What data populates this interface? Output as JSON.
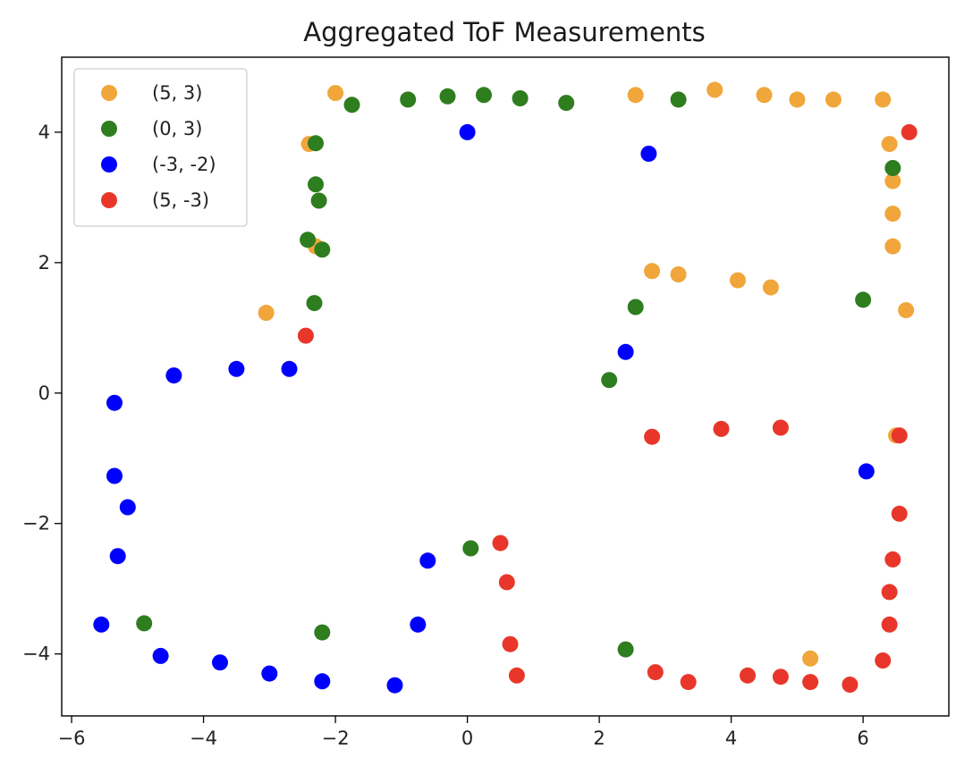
{
  "chart_data": {
    "type": "scatter",
    "title": "Aggregated ToF Measurements",
    "xlabel": "",
    "ylabel": "",
    "xlim": [
      -6.15,
      7.3
    ],
    "ylim": [
      -4.95,
      5.15
    ],
    "xticks": [
      -6,
      -4,
      -2,
      0,
      2,
      4,
      6
    ],
    "yticks": [
      -4,
      -2,
      0,
      2,
      4
    ],
    "x_tick_labels": [
      "−6",
      "−4",
      "−2",
      "0",
      "2",
      "4",
      "6"
    ],
    "y_tick_labels": [
      "−4",
      "−2",
      "0",
      "2",
      "4"
    ],
    "grid": false,
    "legend_position": "top-left",
    "series": [
      {
        "name": "(5, 3)",
        "color": "#f0a63a",
        "points": [
          [
            -2.0,
            4.6
          ],
          [
            2.55,
            4.57
          ],
          [
            3.75,
            4.65
          ],
          [
            4.5,
            4.57
          ],
          [
            5.0,
            4.5
          ],
          [
            5.55,
            4.5
          ],
          [
            6.3,
            4.5
          ],
          [
            -2.4,
            3.82
          ],
          [
            6.4,
            3.82
          ],
          [
            6.45,
            3.25
          ],
          [
            6.45,
            2.75
          ],
          [
            6.45,
            2.25
          ],
          [
            -2.3,
            2.25
          ],
          [
            2.8,
            1.87
          ],
          [
            3.2,
            1.82
          ],
          [
            4.1,
            1.73
          ],
          [
            4.6,
            1.62
          ],
          [
            -3.05,
            1.23
          ],
          [
            6.65,
            1.27
          ],
          [
            6.5,
            -0.65
          ],
          [
            5.2,
            -4.07
          ]
        ]
      },
      {
        "name": "(0, 3)",
        "color": "#2e7d1f",
        "points": [
          [
            -1.75,
            4.42
          ],
          [
            -0.9,
            4.5
          ],
          [
            -0.3,
            4.55
          ],
          [
            0.25,
            4.57
          ],
          [
            0.8,
            4.52
          ],
          [
            1.5,
            4.45
          ],
          [
            3.2,
            4.5
          ],
          [
            -2.3,
            3.83
          ],
          [
            6.45,
            3.45
          ],
          [
            -2.3,
            3.2
          ],
          [
            -2.25,
            2.95
          ],
          [
            -2.42,
            2.35
          ],
          [
            -2.2,
            2.2
          ],
          [
            -2.32,
            1.38
          ],
          [
            6.0,
            1.43
          ],
          [
            2.55,
            1.32
          ],
          [
            2.15,
            0.2
          ],
          [
            0.05,
            -2.38
          ],
          [
            -4.9,
            -3.53
          ],
          [
            -2.2,
            -3.67
          ],
          [
            2.4,
            -3.93
          ]
        ]
      },
      {
        "name": "(-3, -2)",
        "color": "#0000ff",
        "points": [
          [
            0.0,
            4.0
          ],
          [
            2.75,
            3.67
          ],
          [
            2.4,
            0.63
          ],
          [
            -2.7,
            0.37
          ],
          [
            -3.5,
            0.37
          ],
          [
            -4.45,
            0.27
          ],
          [
            -5.35,
            -0.15
          ],
          [
            -5.35,
            -1.27
          ],
          [
            -5.15,
            -1.75
          ],
          [
            -5.3,
            -2.5
          ],
          [
            -5.55,
            -3.55
          ],
          [
            -4.65,
            -4.03
          ],
          [
            -3.75,
            -4.13
          ],
          [
            -3.0,
            -4.3
          ],
          [
            -2.2,
            -4.42
          ],
          [
            -1.1,
            -4.48
          ],
          [
            -0.75,
            -3.55
          ],
          [
            -0.6,
            -2.57
          ],
          [
            6.05,
            -1.2
          ]
        ]
      },
      {
        "name": "(5, -3)",
        "color": "#e8372a",
        "points": [
          [
            6.7,
            4.0
          ],
          [
            -2.45,
            0.88
          ],
          [
            2.8,
            -0.67
          ],
          [
            3.85,
            -0.55
          ],
          [
            4.75,
            -0.53
          ],
          [
            6.55,
            -0.65
          ],
          [
            6.55,
            -1.85
          ],
          [
            0.5,
            -2.3
          ],
          [
            6.45,
            -2.55
          ],
          [
            0.6,
            -2.9
          ],
          [
            6.4,
            -3.05
          ],
          [
            6.4,
            -3.55
          ],
          [
            0.65,
            -3.85
          ],
          [
            0.75,
            -4.33
          ],
          [
            2.85,
            -4.28
          ],
          [
            3.35,
            -4.43
          ],
          [
            4.25,
            -4.33
          ],
          [
            4.75,
            -4.35
          ],
          [
            5.2,
            -4.43
          ],
          [
            5.8,
            -4.47
          ],
          [
            6.3,
            -4.1
          ]
        ]
      }
    ]
  }
}
